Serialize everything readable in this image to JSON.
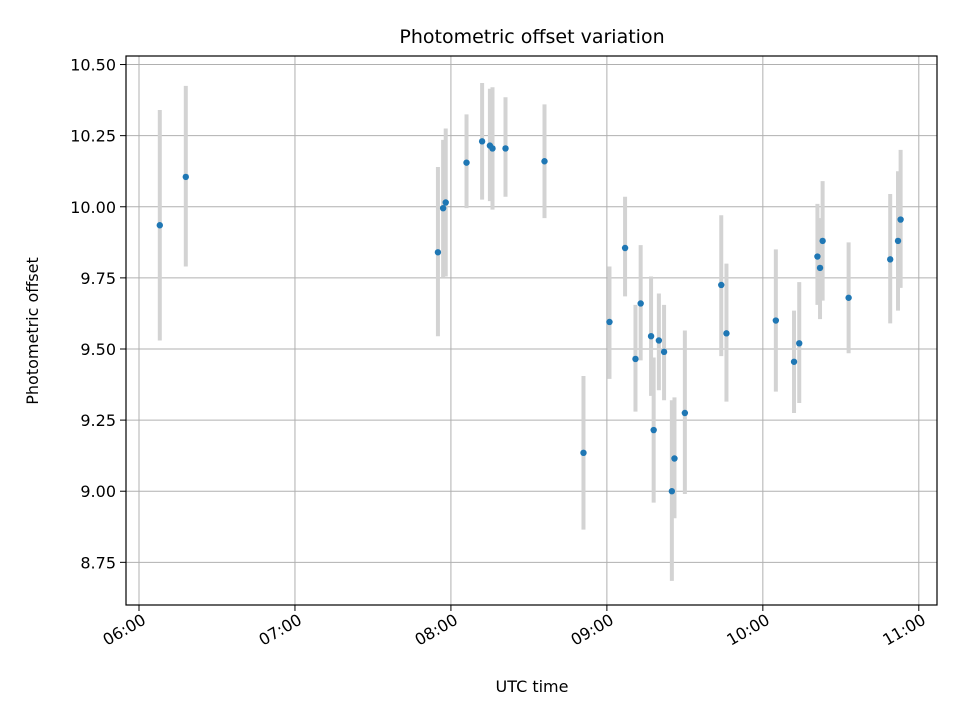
{
  "chart_data": {
    "type": "scatter",
    "title": "Photometric offset variation",
    "xlabel": "UTC time",
    "ylabel": "Photometric offset",
    "grid": true,
    "error_bars": true,
    "xlim": [
      "05:55",
      "11:07"
    ],
    "ylim": [
      8.6,
      10.53
    ],
    "x_ticks": [
      "06:00",
      "07:00",
      "08:00",
      "09:00",
      "10:00",
      "11:00"
    ],
    "y_ticks": [
      8.75,
      9.0,
      9.25,
      9.5,
      9.75,
      10.0,
      10.25,
      10.5
    ],
    "y_tick_labels": [
      "8.75",
      "9.00",
      "9.25",
      "9.50",
      "9.75",
      "10.00",
      "10.25",
      "10.50"
    ],
    "colors": {
      "points": "#1f77b4",
      "error_bars": "#d3d3d3",
      "grid": "#b0b0b0"
    },
    "points": [
      {
        "x": "06:08",
        "y": 9.935,
        "low": 9.53,
        "high": 10.34
      },
      {
        "x": "06:18",
        "y": 10.105,
        "low": 9.79,
        "high": 10.425
      },
      {
        "x": "07:55",
        "y": 9.84,
        "low": 9.545,
        "high": 10.14
      },
      {
        "x": "07:57",
        "y": 9.995,
        "low": 9.75,
        "high": 10.235
      },
      {
        "x": "07:58",
        "y": 10.015,
        "low": 9.755,
        "high": 10.275
      },
      {
        "x": "08:06",
        "y": 10.155,
        "low": 9.995,
        "high": 10.325
      },
      {
        "x": "08:12",
        "y": 10.23,
        "low": 10.025,
        "high": 10.435
      },
      {
        "x": "08:15",
        "y": 10.215,
        "low": 10.02,
        "high": 10.415
      },
      {
        "x": "08:16",
        "y": 10.205,
        "low": 9.99,
        "high": 10.42
      },
      {
        "x": "08:21",
        "y": 10.205,
        "low": 10.035,
        "high": 10.385
      },
      {
        "x": "08:36",
        "y": 10.16,
        "low": 9.96,
        "high": 10.36
      },
      {
        "x": "08:51",
        "y": 9.135,
        "low": 8.865,
        "high": 9.405
      },
      {
        "x": "09:01",
        "y": 9.595,
        "low": 9.395,
        "high": 9.79
      },
      {
        "x": "09:07",
        "y": 9.855,
        "low": 9.685,
        "high": 10.035
      },
      {
        "x": "09:11",
        "y": 9.465,
        "low": 9.28,
        "high": 9.655
      },
      {
        "x": "09:13",
        "y": 9.66,
        "low": 9.46,
        "high": 9.865
      },
      {
        "x": "09:17",
        "y": 9.545,
        "low": 9.335,
        "high": 9.755
      },
      {
        "x": "09:18",
        "y": 9.215,
        "low": 8.96,
        "high": 9.47
      },
      {
        "x": "09:20",
        "y": 9.53,
        "low": 9.355,
        "high": 9.695
      },
      {
        "x": "09:22",
        "y": 9.49,
        "low": 9.32,
        "high": 9.655
      },
      {
        "x": "09:25",
        "y": 9.0,
        "low": 8.685,
        "high": 9.32
      },
      {
        "x": "09:26",
        "y": 9.115,
        "low": 8.905,
        "high": 9.33
      },
      {
        "x": "09:30",
        "y": 9.275,
        "low": 8.99,
        "high": 9.565
      },
      {
        "x": "09:44",
        "y": 9.725,
        "low": 9.475,
        "high": 9.97
      },
      {
        "x": "09:46",
        "y": 9.555,
        "low": 9.315,
        "high": 9.8
      },
      {
        "x": "10:05",
        "y": 9.6,
        "low": 9.35,
        "high": 9.85
      },
      {
        "x": "10:12",
        "y": 9.455,
        "low": 9.275,
        "high": 9.635
      },
      {
        "x": "10:14",
        "y": 9.52,
        "low": 9.31,
        "high": 9.735
      },
      {
        "x": "10:21",
        "y": 9.825,
        "low": 9.655,
        "high": 10.01
      },
      {
        "x": "10:22",
        "y": 9.785,
        "low": 9.605,
        "high": 9.96
      },
      {
        "x": "10:23",
        "y": 9.88,
        "low": 9.67,
        "high": 10.09
      },
      {
        "x": "10:33",
        "y": 9.68,
        "low": 9.485,
        "high": 9.875
      },
      {
        "x": "10:49",
        "y": 9.815,
        "low": 9.59,
        "high": 10.045
      },
      {
        "x": "10:52",
        "y": 9.88,
        "low": 9.635,
        "high": 10.125
      },
      {
        "x": "10:53",
        "y": 9.955,
        "low": 9.715,
        "high": 10.2
      }
    ]
  }
}
